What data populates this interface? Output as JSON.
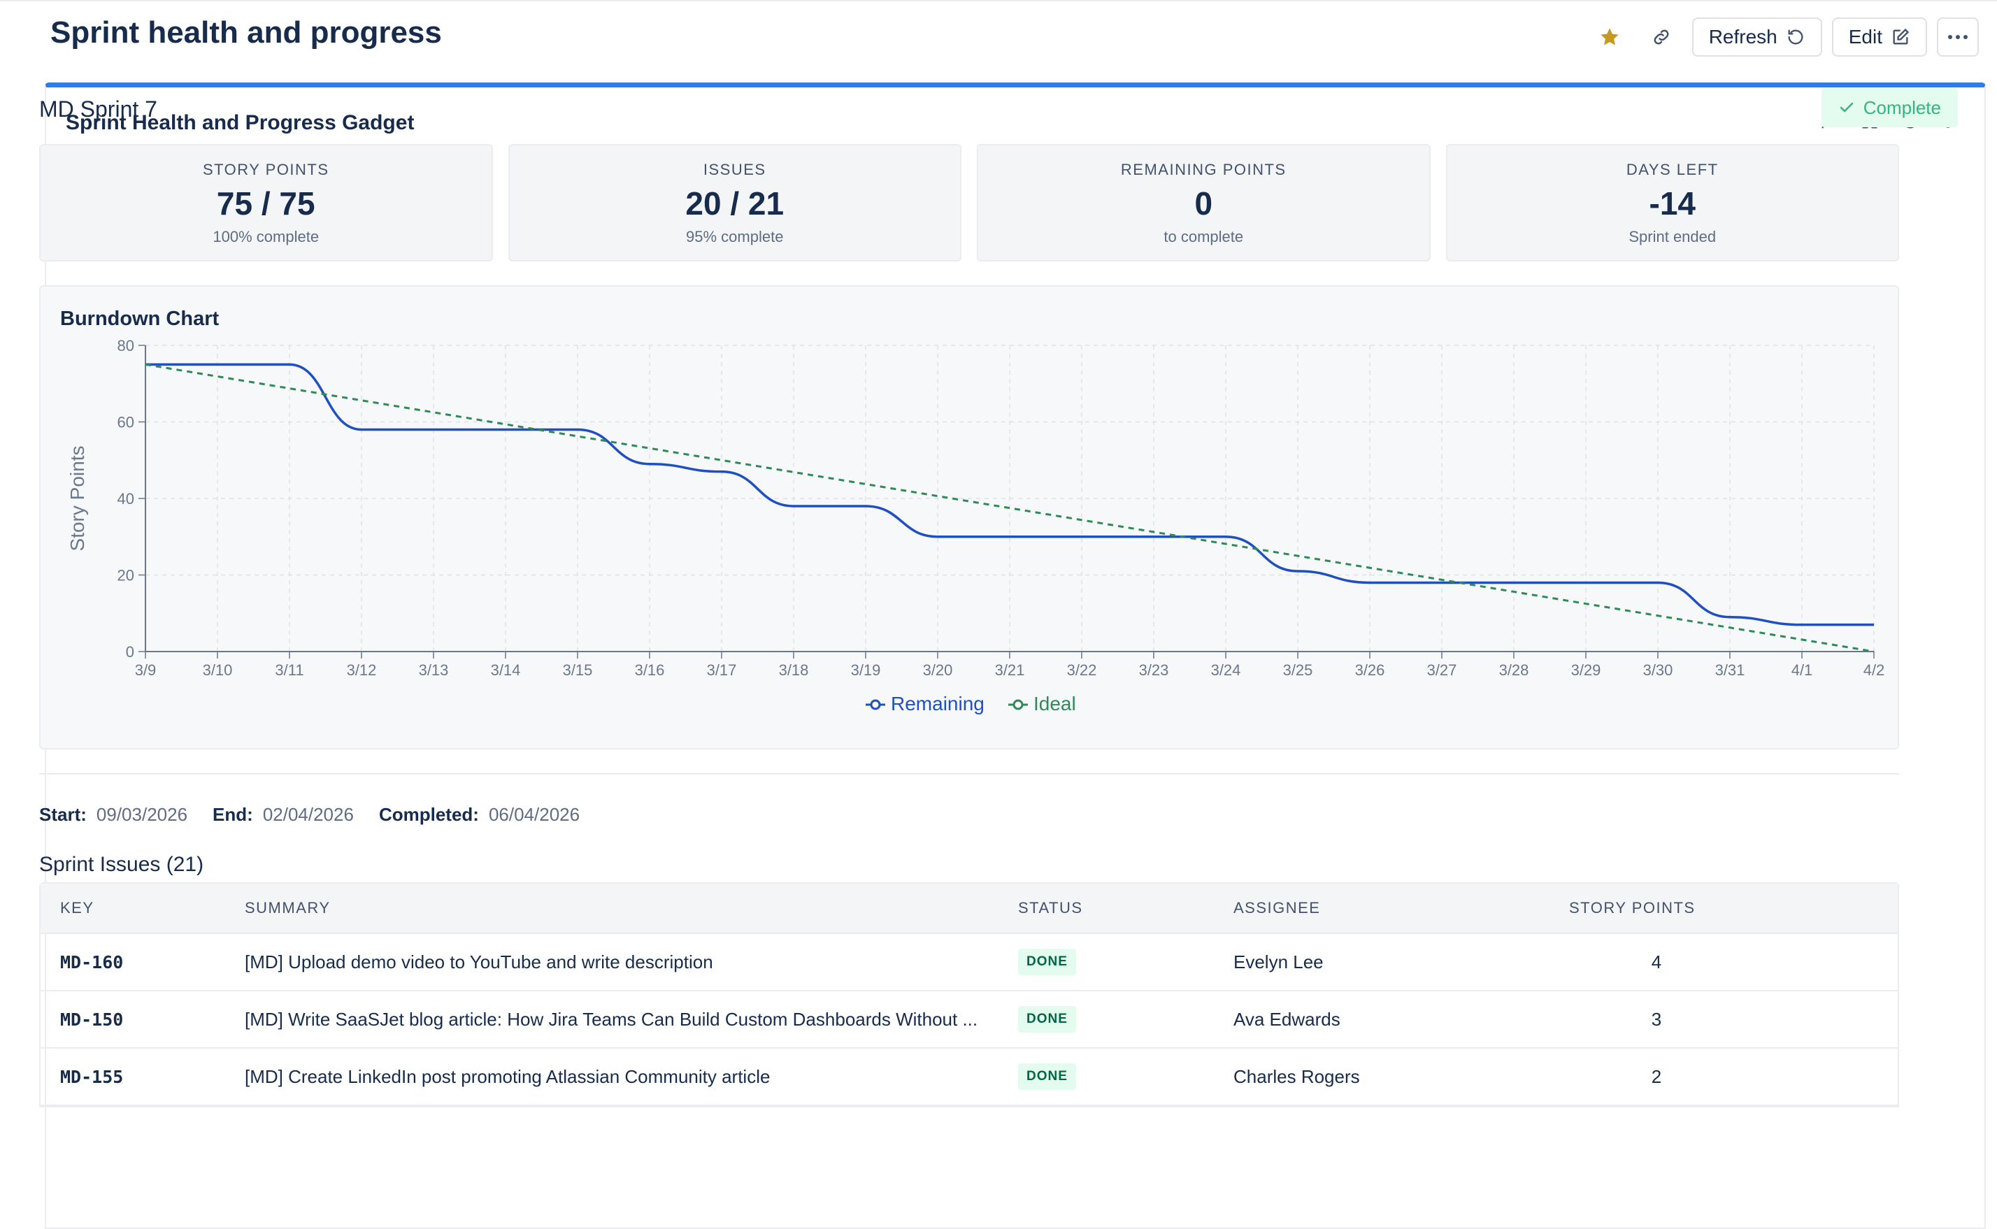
{
  "page": {
    "title": "Sprint health and progress",
    "refresh_label": "Refresh",
    "edit_label": "Edit",
    "star_color": "#c49a20",
    "icons": [
      "star-icon",
      "link-icon",
      "refresh-icon",
      "edit-icon",
      "more-icon"
    ]
  },
  "gadget": {
    "title": "Sprint Health and Progress Gadget",
    "tools": [
      "minimize-icon",
      "fullscreen-icon",
      "refresh-icon",
      "link-icon"
    ],
    "accent_color": "#2f7ce8"
  },
  "sprint": {
    "name": "MD Sprint 7",
    "status": "Complete"
  },
  "metrics": [
    {
      "label": "STORY POINTS",
      "value": "75 / 75",
      "sub": "100% complete"
    },
    {
      "label": "ISSUES",
      "value": "20 / 21",
      "sub": "95% complete"
    },
    {
      "label": "REMAINING POINTS",
      "value": "0",
      "sub": "to complete"
    },
    {
      "label": "DAYS LEFT",
      "value": "-14",
      "sub": "Sprint ended"
    }
  ],
  "chart_data": {
    "type": "line",
    "title": "Burndown Chart",
    "ylabel": "Story Points",
    "xlabel": "",
    "ylim": [
      0,
      80
    ],
    "yticks": [
      0,
      20,
      40,
      60,
      80
    ],
    "grid": true,
    "legend": "bottom-center",
    "x": [
      "3/9",
      "3/10",
      "3/11",
      "3/12",
      "3/13",
      "3/14",
      "3/15",
      "3/16",
      "3/17",
      "3/18",
      "3/19",
      "3/20",
      "3/21",
      "3/22",
      "3/23",
      "3/24",
      "3/25",
      "3/26",
      "3/27",
      "3/28",
      "3/29",
      "3/30",
      "3/31",
      "4/1",
      "4/2"
    ],
    "series": [
      {
        "name": "Remaining",
        "color": "#1f4fc1",
        "style": "solid",
        "values": [
          75,
          75,
          75,
          58,
          58,
          58,
          58,
          49,
          47,
          38,
          38,
          30,
          30,
          30,
          30,
          30,
          21,
          18,
          18,
          18,
          18,
          18,
          9,
          7,
          7
        ]
      },
      {
        "name": "Ideal",
        "color": "#2e8b57",
        "style": "dashed",
        "values": [
          75,
          71.875,
          68.75,
          65.625,
          62.5,
          59.375,
          56.25,
          53.125,
          50,
          46.875,
          43.75,
          40.625,
          37.5,
          34.375,
          31.25,
          28.125,
          25,
          21.875,
          18.75,
          15.625,
          12.5,
          9.375,
          6.25,
          3.125,
          0
        ]
      }
    ]
  },
  "dates": {
    "start_label": "Start:",
    "start": "09/03/2026",
    "end_label": "End:",
    "end": "02/04/2026",
    "completed_label": "Completed:",
    "completed": "06/04/2026"
  },
  "issues": {
    "title": "Sprint Issues (21)",
    "columns": [
      "KEY",
      "SUMMARY",
      "STATUS",
      "ASSIGNEE",
      "STORY POINTS"
    ],
    "rows": [
      {
        "key": "MD-160",
        "summary": "[MD] Upload demo video to YouTube and write description",
        "status": "DONE",
        "assignee": "Evelyn Lee",
        "points": "4"
      },
      {
        "key": "MD-150",
        "summary": "[MD] Write SaaSJet blog article: How Jira Teams Can Build Custom Dashboards Without ...",
        "status": "DONE",
        "assignee": "Ava Edwards",
        "points": "3"
      },
      {
        "key": "MD-155",
        "summary": "[MD] Create LinkedIn post promoting Atlassian Community article",
        "status": "DONE",
        "assignee": "Charles Rogers",
        "points": "2"
      }
    ]
  }
}
